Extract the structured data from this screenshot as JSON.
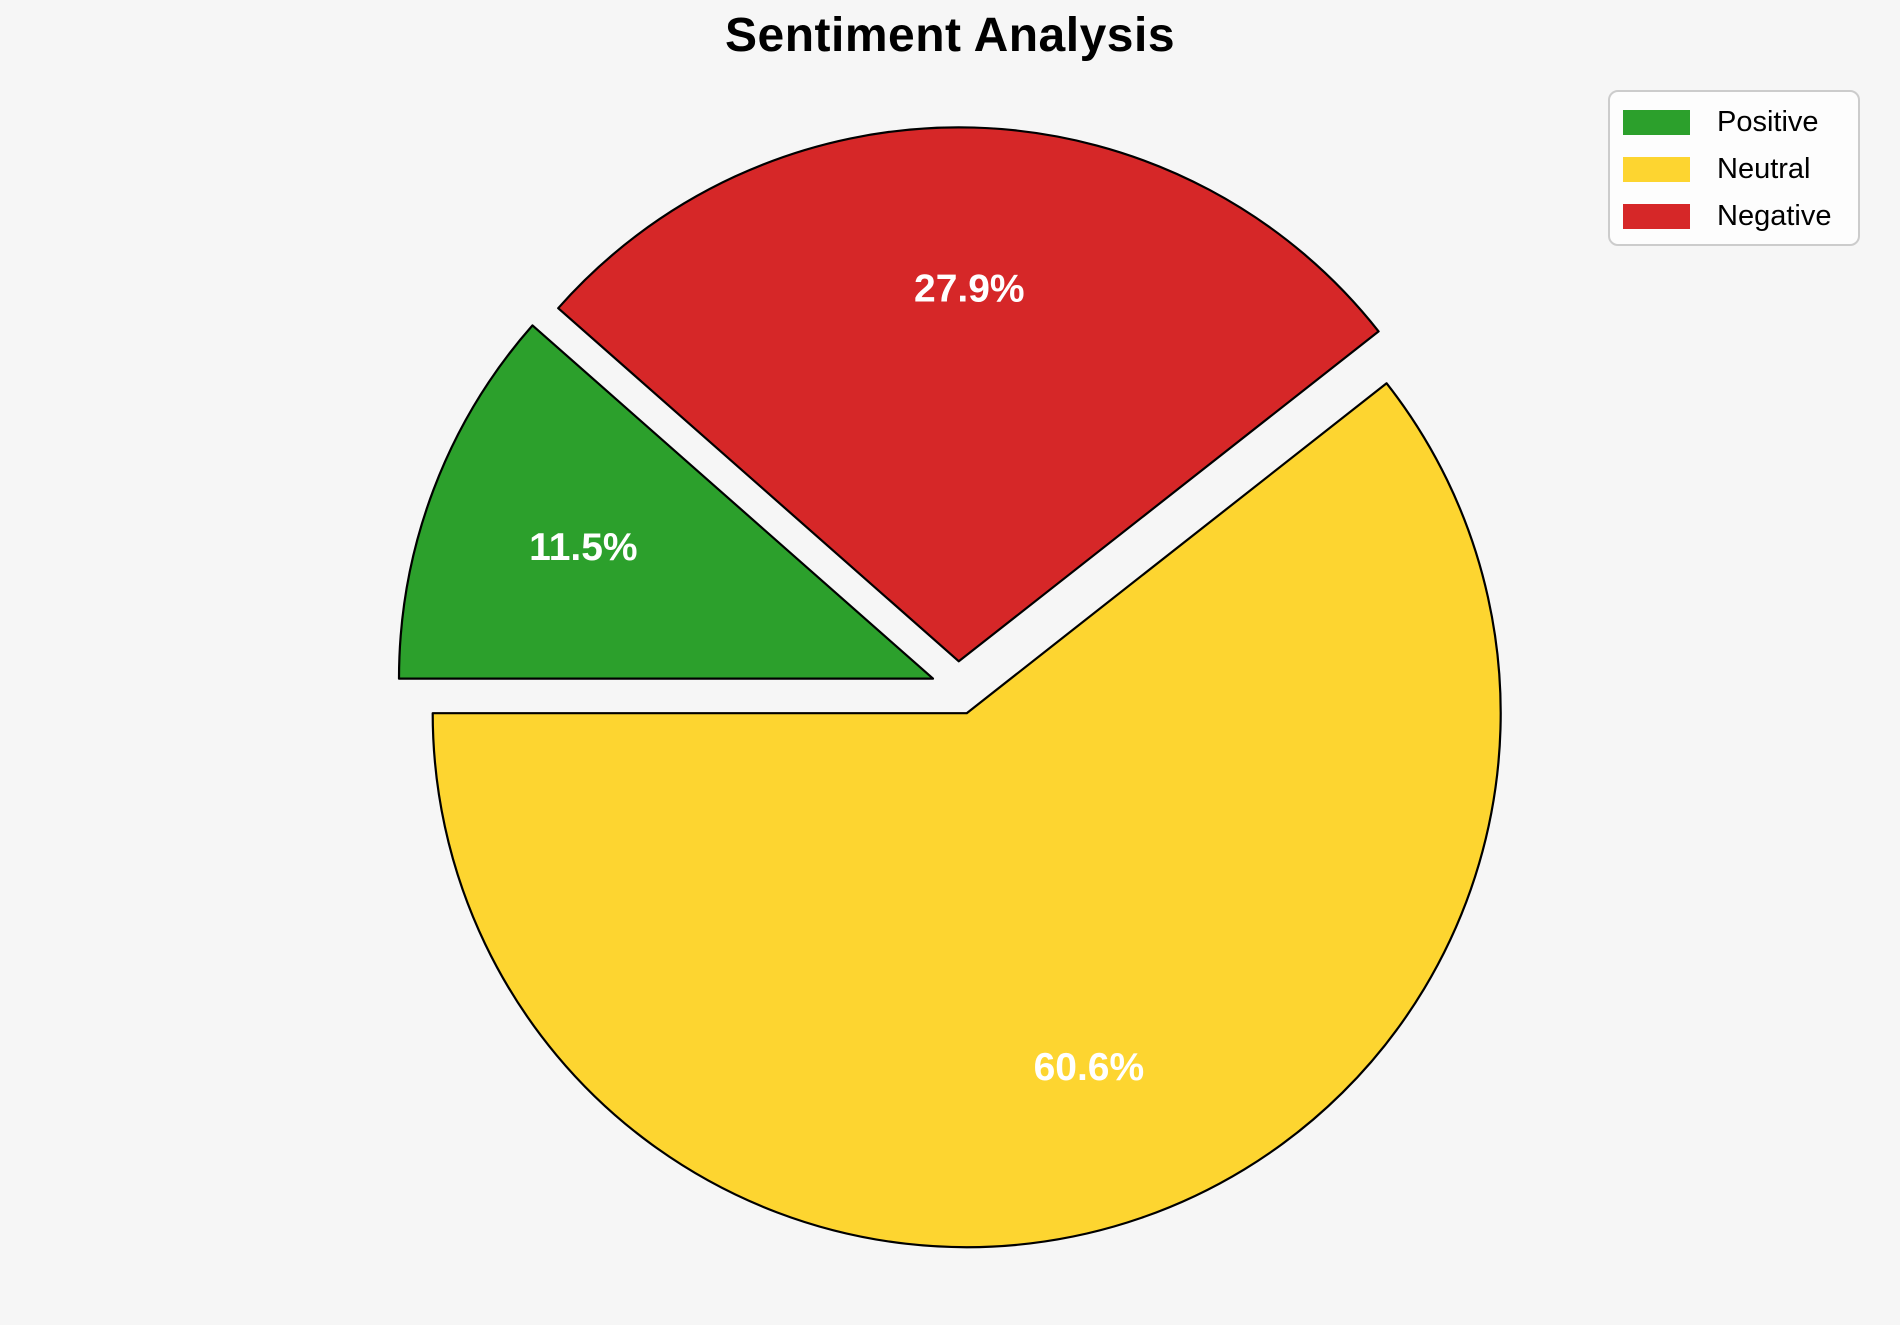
{
  "page": {
    "background": "#f6f6f6"
  },
  "chart_data": {
    "type": "pie",
    "title": "Sentiment Analysis",
    "slices": [
      {
        "label": "Positive",
        "value": 11.5,
        "pct_label": "11.5%",
        "color": "#2ca02c"
      },
      {
        "label": "Neutral",
        "value": 60.6,
        "pct_label": "60.6%",
        "color": "#fdd530"
      },
      {
        "label": "Negative",
        "value": 27.9,
        "pct_label": "27.9%",
        "color": "#d62728"
      }
    ],
    "draw_order": [
      1,
      2,
      0
    ],
    "start_angle_deg": 180,
    "direction": "counterclockwise",
    "explode_fraction": 0.05,
    "pct_label_distance": 0.7,
    "edge_color": "#000000",
    "pct_label_color": "#ffffff",
    "legend": {
      "position": "upper-right",
      "entries": [
        "Positive",
        "Neutral",
        "Negative"
      ]
    }
  }
}
